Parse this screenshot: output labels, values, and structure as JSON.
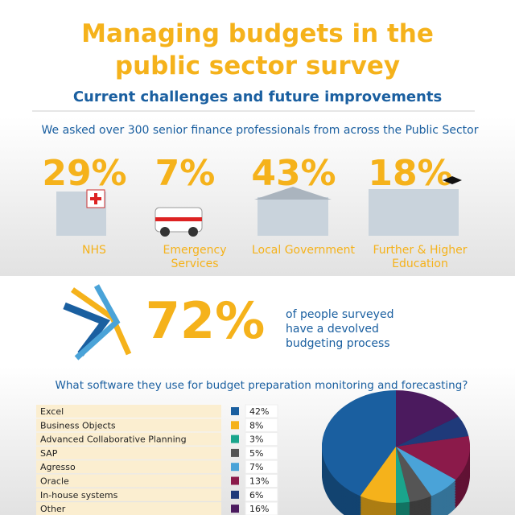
{
  "header": {
    "title_line1": "Managing budgets in the",
    "title_line2": "public sector survey",
    "subtitle": "Current challenges and future improvements"
  },
  "intro": "We asked over 300 senior finance professionals from across the Public Sector",
  "sectors": [
    {
      "percent": "29%",
      "label_lines": [
        "NHS"
      ]
    },
    {
      "percent": "7%",
      "label_lines": [
        "Emergency",
        "Services"
      ]
    },
    {
      "percent": "43%",
      "label_lines": [
        "Local Government"
      ]
    },
    {
      "percent": "18%",
      "label_lines": [
        "Further & Higher",
        "Education"
      ]
    }
  ],
  "devolved": {
    "percent": "72%",
    "text_lines": [
      "of people surveyed",
      "have a devolved",
      "budgeting process"
    ]
  },
  "software_question": "What software they use for budget preparation monitoring and forecasting?",
  "chart_data": {
    "type": "pie",
    "categories": [
      "Excel",
      "Business Objects",
      "Advanced Collaborative Planning",
      "SAP",
      "Agresso",
      "Oracle",
      "In-house systems",
      "Other"
    ],
    "values": [
      42,
      8,
      3,
      5,
      7,
      13,
      6,
      16
    ],
    "value_labels": [
      "42%",
      "8%",
      "3%",
      "5%",
      "7%",
      "13%",
      "6%",
      "16%"
    ],
    "colors": [
      "#1a5fa0",
      "#f5b21b",
      "#1aa58c",
      "#555555",
      "#4aa3d8",
      "#8b1a4a",
      "#1f3a7a",
      "#4b1a5e"
    ]
  }
}
